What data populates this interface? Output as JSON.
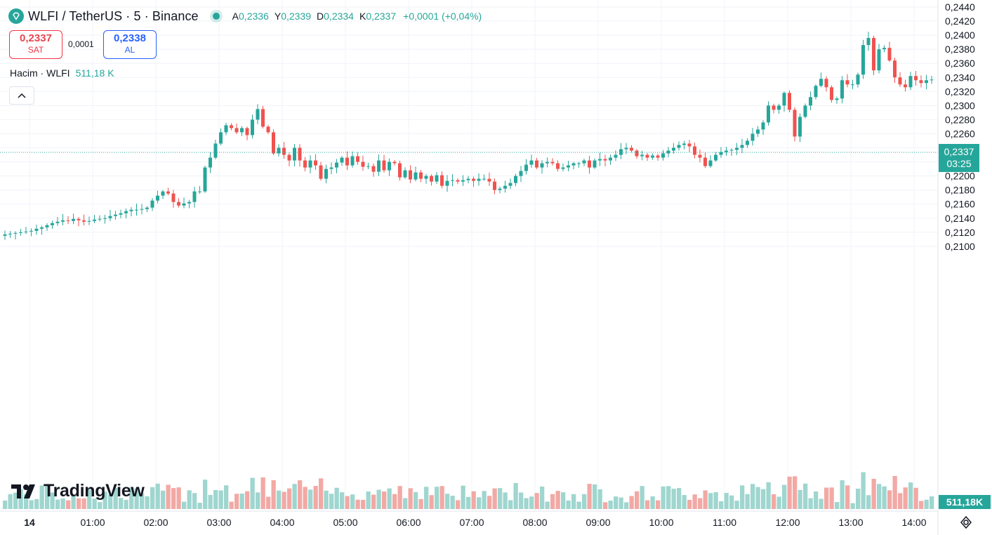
{
  "header": {
    "symbol": "WLFI / TetherUS · 5 · Binance",
    "ohlc": [
      {
        "label": "A",
        "value": "0,2336"
      },
      {
        "label": "Y",
        "value": "0,2339"
      },
      {
        "label": "D",
        "value": "0,2334"
      },
      {
        "label": "K",
        "value": "0,2337"
      }
    ],
    "change": "+0,0001 (+0,04%)"
  },
  "trade": {
    "sell_price": "0,2337",
    "sell_label": "SAT",
    "spread": "0,0001",
    "buy_price": "0,2338",
    "buy_label": "AL"
  },
  "volume_legend": {
    "label": "Hacim · WLFI",
    "value": "511,18 K"
  },
  "last_price": {
    "price": "0,2337",
    "countdown": "03:25"
  },
  "last_volume": "511,18K",
  "watermark": "TradingView",
  "colors": {
    "up": "#26a69a",
    "down": "#ef5350",
    "up_vol": "#9fd6cf",
    "down_vol": "#f2a9a5",
    "grid": "#f0f3fa"
  },
  "icons": {
    "logo": "diamond-icon",
    "collapse": "chevron-up-icon",
    "settings": "gear-icon"
  },
  "chart_data": {
    "type": "candlestick",
    "ylim": [
      0.2085,
      0.2445
    ],
    "y_ticks": [
      "0,2100",
      "0,2120",
      "0,2140",
      "0,2160",
      "0,2180",
      "0,2200",
      "0,2220",
      "0,2240",
      "0,2260",
      "0,2280",
      "0,2300",
      "0,2320",
      "0,2340",
      "0,2360",
      "0,2380",
      "0,2400",
      "0,2420",
      "0,2440"
    ],
    "x_ticks": [
      "14",
      "01:00",
      "02:00",
      "03:00",
      "04:00",
      "05:00",
      "06:00",
      "07:00",
      "08:00",
      "09:00",
      "10:00",
      "11:00",
      "12:00",
      "13:00",
      "14:00"
    ],
    "grid": true,
    "close": [
      0.2117,
      0.2118,
      0.2119,
      0.212,
      0.2121,
      0.2122,
      0.2125,
      0.2127,
      0.213,
      0.2133,
      0.2135,
      0.2137,
      0.2136,
      0.2139,
      0.2137,
      0.2135,
      0.2136,
      0.2138,
      0.2139,
      0.214,
      0.2143,
      0.2145,
      0.2147,
      0.215,
      0.2152,
      0.2152,
      0.2153,
      0.2155,
      0.2165,
      0.2172,
      0.2178,
      0.2175,
      0.2163,
      0.2158,
      0.2161,
      0.2163,
      0.2178,
      0.2178,
      0.2212,
      0.2226,
      0.2246,
      0.2262,
      0.2272,
      0.2268,
      0.2262,
      0.2268,
      0.2258,
      0.228,
      0.2295,
      0.227,
      0.2262,
      0.2232,
      0.224,
      0.223,
      0.2222,
      0.224,
      0.2222,
      0.2212,
      0.2222,
      0.2215,
      0.2196,
      0.221,
      0.2212,
      0.2219,
      0.2226,
      0.2215,
      0.2228,
      0.222,
      0.2213,
      0.2214,
      0.2206,
      0.2222,
      0.2208,
      0.222,
      0.2218,
      0.2198,
      0.2208,
      0.2195,
      0.2205,
      0.2196,
      0.22,
      0.2192,
      0.2201,
      0.2186,
      0.2193,
      0.2194,
      0.2192,
      0.2194,
      0.2196,
      0.2193,
      0.2196,
      0.2196,
      0.2192,
      0.218,
      0.2182,
      0.2186,
      0.219,
      0.22,
      0.2207,
      0.2216,
      0.2222,
      0.2212,
      0.2218,
      0.222,
      0.2218,
      0.221,
      0.2212,
      0.2215,
      0.2218,
      0.2218,
      0.2222,
      0.2212,
      0.2222,
      0.2224,
      0.2222,
      0.2226,
      0.223,
      0.2238,
      0.224,
      0.2236,
      0.2228,
      0.223,
      0.2226,
      0.2229,
      0.2226,
      0.2232,
      0.2236,
      0.224,
      0.2244,
      0.2246,
      0.2242,
      0.223,
      0.2226,
      0.2214,
      0.2222,
      0.223,
      0.2234,
      0.2236,
      0.2237,
      0.224,
      0.2244,
      0.225,
      0.226,
      0.2266,
      0.2276,
      0.23,
      0.2294,
      0.23,
      0.2318,
      0.2294,
      0.2256,
      0.2284,
      0.23,
      0.2312,
      0.2328,
      0.2338,
      0.2326,
      0.2308,
      0.231,
      0.2336,
      0.233,
      0.233,
      0.2344,
      0.2386,
      0.2396,
      0.235,
      0.238,
      0.2382,
      0.2364,
      0.234,
      0.233,
      0.2326,
      0.2342,
      0.2336,
      0.2332,
      0.2336,
      0.2337
    ]
  }
}
